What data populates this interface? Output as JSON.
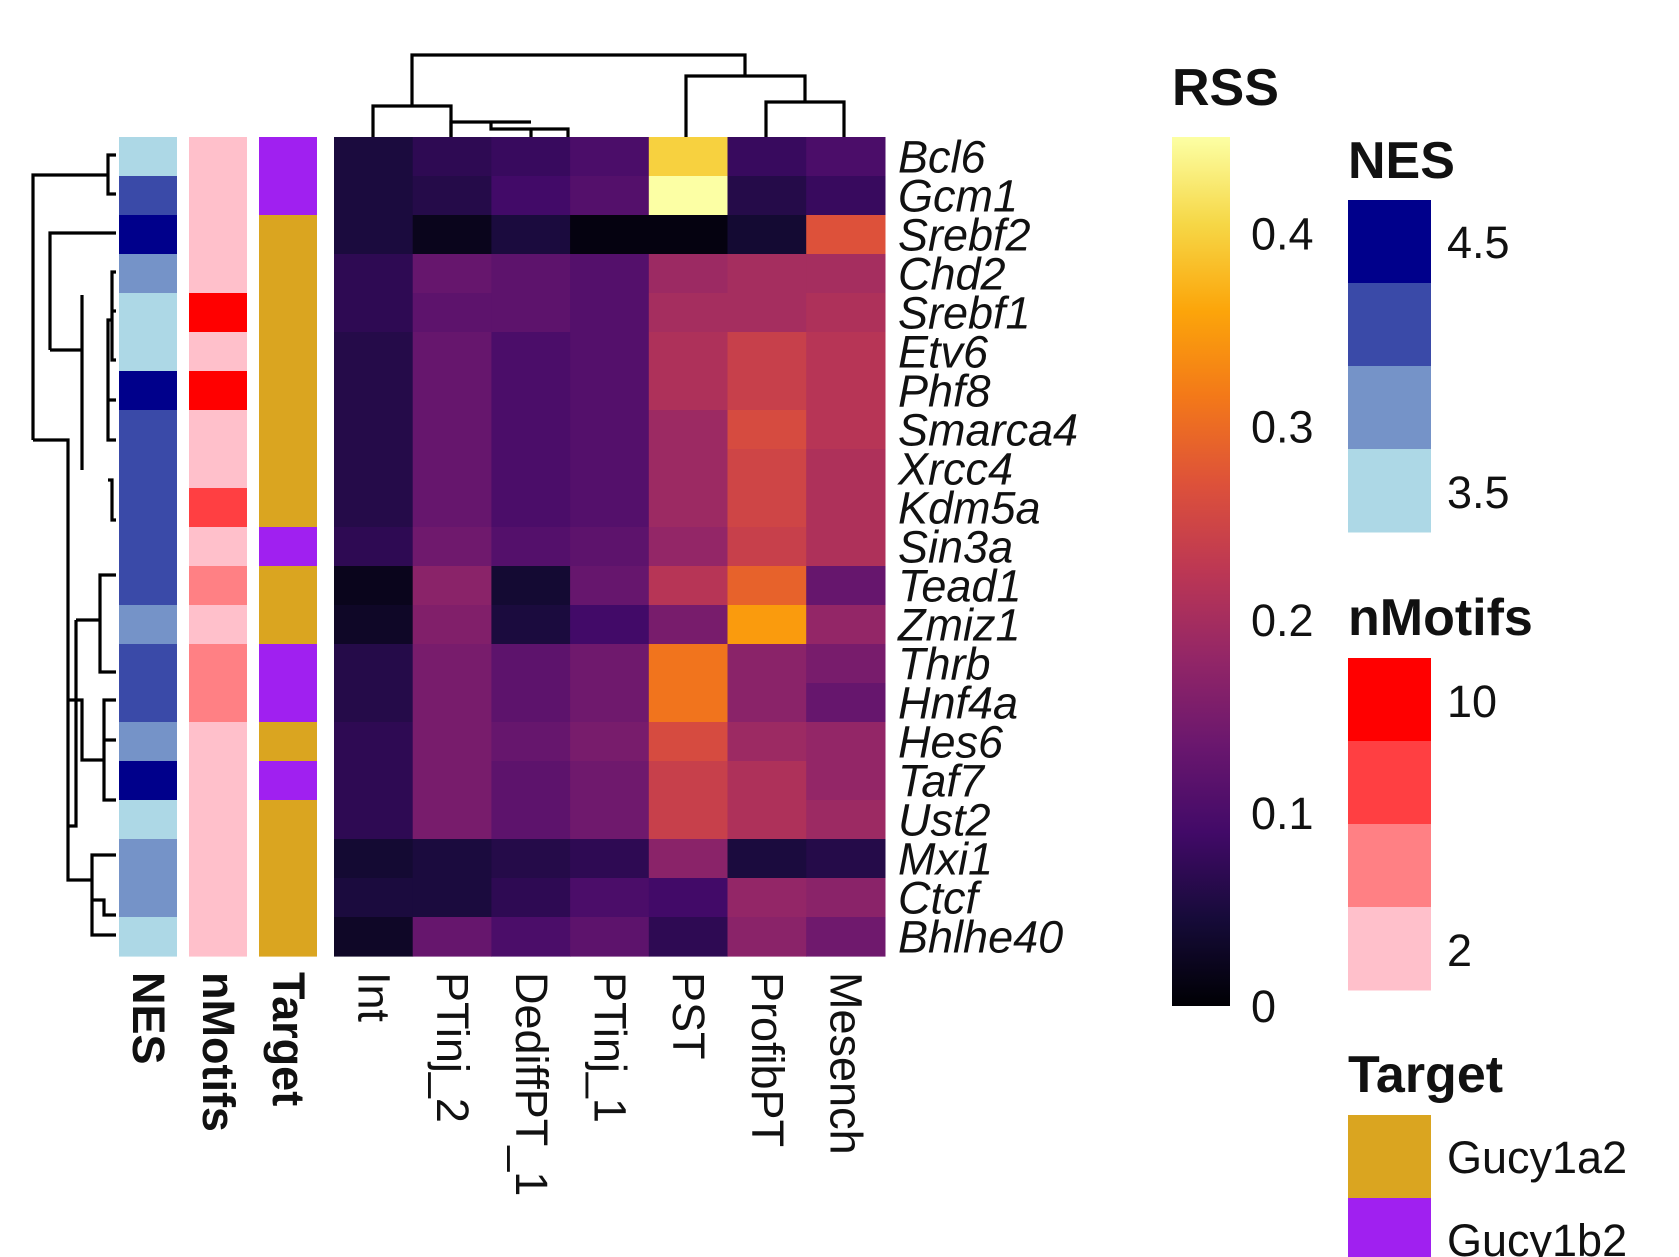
{
  "chart_data": {
    "type": "heatmap",
    "title": "",
    "rows": [
      "Bcl6",
      "Gcm1",
      "Srebf2",
      "Chd2",
      "Srebf1",
      "Etv6",
      "Phf8",
      "Smarca4",
      "Xrcc4",
      "Kdm5a",
      "Sin3a",
      "Tead1",
      "Zmiz1",
      "Thrb",
      "Hnf4a",
      "Hes6",
      "Taf7",
      "Ust2",
      "Mxi1",
      "Ctcf",
      "Bhlhe40"
    ],
    "columns": [
      "Int",
      "PTinj_2",
      "DediffPT_1",
      "PTinj_1",
      "PST",
      "ProfibPT",
      "Mesench"
    ],
    "values": [
      [
        0.05,
        0.07,
        0.08,
        0.1,
        0.4,
        0.08,
        0.1
      ],
      [
        0.05,
        0.06,
        0.09,
        0.11,
        0.45,
        0.06,
        0.08
      ],
      [
        0.05,
        0.02,
        0.05,
        0.01,
        0.01,
        0.04,
        0.27
      ],
      [
        0.07,
        0.13,
        0.12,
        0.11,
        0.19,
        0.2,
        0.2
      ],
      [
        0.07,
        0.12,
        0.12,
        0.11,
        0.2,
        0.2,
        0.21
      ],
      [
        0.06,
        0.13,
        0.1,
        0.11,
        0.21,
        0.24,
        0.22
      ],
      [
        0.06,
        0.13,
        0.1,
        0.11,
        0.21,
        0.24,
        0.22
      ],
      [
        0.06,
        0.13,
        0.1,
        0.11,
        0.19,
        0.26,
        0.22
      ],
      [
        0.06,
        0.13,
        0.1,
        0.11,
        0.19,
        0.25,
        0.21
      ],
      [
        0.06,
        0.13,
        0.1,
        0.11,
        0.19,
        0.25,
        0.21
      ],
      [
        0.07,
        0.14,
        0.11,
        0.12,
        0.18,
        0.24,
        0.21
      ],
      [
        0.02,
        0.17,
        0.04,
        0.13,
        0.22,
        0.29,
        0.13
      ],
      [
        0.03,
        0.16,
        0.05,
        0.09,
        0.15,
        0.35,
        0.18
      ],
      [
        0.06,
        0.15,
        0.12,
        0.14,
        0.31,
        0.17,
        0.15
      ],
      [
        0.06,
        0.15,
        0.12,
        0.14,
        0.31,
        0.17,
        0.13
      ],
      [
        0.07,
        0.15,
        0.13,
        0.15,
        0.26,
        0.19,
        0.18
      ],
      [
        0.07,
        0.15,
        0.12,
        0.14,
        0.24,
        0.21,
        0.18
      ],
      [
        0.07,
        0.15,
        0.12,
        0.14,
        0.24,
        0.21,
        0.19
      ],
      [
        0.04,
        0.05,
        0.06,
        0.07,
        0.17,
        0.05,
        0.06
      ],
      [
        0.05,
        0.05,
        0.07,
        0.1,
        0.09,
        0.18,
        0.17
      ],
      [
        0.03,
        0.13,
        0.1,
        0.12,
        0.07,
        0.17,
        0.14
      ]
    ],
    "annotations": {
      "NES": [
        3.5,
        4.3,
        4.8,
        3.9,
        3.5,
        3.5,
        4.6,
        4.4,
        4.4,
        4.4,
        4.4,
        4.2,
        3.9,
        4.2,
        4.4,
        3.8,
        4.6,
        3.7,
        3.9,
        4.1,
        3.5
      ],
      "nMotifs": [
        2,
        3,
        2,
        2,
        10,
        3,
        10,
        2,
        2,
        7,
        2,
        5,
        3,
        4,
        4,
        2,
        2,
        2,
        2,
        2,
        2
      ],
      "Target": [
        "Gucy1b2",
        "Gucy1b2",
        "Gucy1a2",
        "Gucy1a2",
        "Gucy1a2",
        "Gucy1a2",
        "Gucy1a2",
        "Gucy1a2",
        "Gucy1a2",
        "Gucy1a2",
        "Gucy1b2",
        "Gucy1a2",
        "Gucy1a2",
        "Gucy1b2",
        "Gucy1b2",
        "Gucy1a2",
        "Gucy1b2",
        "Gucy1a2",
        "Gucy1a2",
        "Gucy1a2",
        "Gucy1a2"
      ]
    },
    "annotation_labels": [
      "NES",
      "nMotifs",
      "Target"
    ],
    "color_scale": {
      "name": "RSS",
      "range": [
        0,
        0.45
      ],
      "ticks": [
        0,
        0.1,
        0.2,
        0.3,
        0.4
      ],
      "tick_labels": [
        "0",
        "0.1",
        "0.2",
        "0.3",
        "0.4"
      ],
      "palette": "inferno"
    },
    "legends": {
      "rss_title": "RSS",
      "nes_title": "NES",
      "nes_labels": [
        "4.5",
        "3.5"
      ],
      "nes_colors": [
        "#00008b",
        "#3a4aa8",
        "#7593c8",
        "#add8e6"
      ],
      "nmotifs_title": "nMotifs",
      "nmotifs_labels": [
        "10",
        "2"
      ],
      "nmotifs_colors": [
        "#ff0000",
        "#ff3f42",
        "#ff8084",
        "#ffc0cb"
      ],
      "target_title": "Target",
      "target_items": [
        {
          "label": "Gucy1a2",
          "color": "#daa520"
        },
        {
          "label": "Gucy1b2",
          "color": "#a020f0"
        }
      ]
    }
  }
}
